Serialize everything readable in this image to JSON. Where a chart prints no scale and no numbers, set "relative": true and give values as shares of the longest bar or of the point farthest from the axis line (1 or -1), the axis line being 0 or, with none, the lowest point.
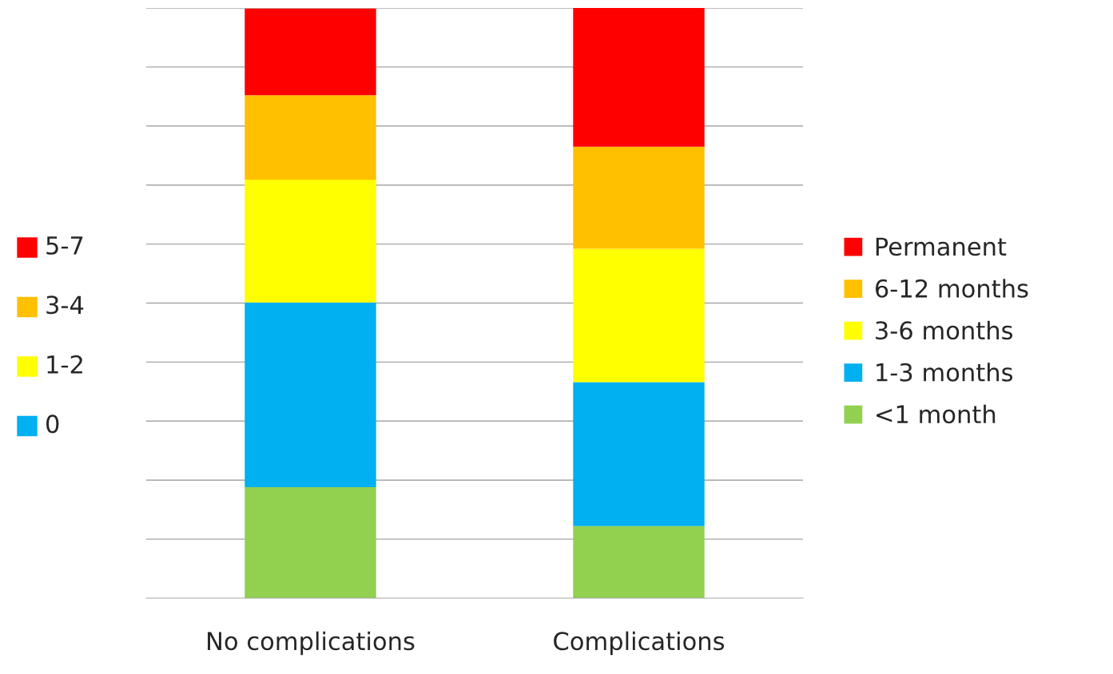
{
  "chart_data": {
    "type": "bar",
    "stacked": true,
    "relative": true,
    "grid": "y",
    "legend": "right",
    "categories": [
      "No complications",
      "Complications"
    ],
    "series": [
      {
        "name": "<1 month",
        "color": "#92d050",
        "values": [
          0.188,
          0.122
        ]
      },
      {
        "name": "1-3 months",
        "color": "#00b0f0",
        "values": [
          0.313,
          0.244
        ]
      },
      {
        "name": "3-6 months",
        "color": "#ffff00",
        "values": [
          0.208,
          0.226
        ]
      },
      {
        "name": "6-12 months",
        "color": "#ffc000",
        "values": [
          0.143,
          0.173
        ]
      },
      {
        "name": "Permanent",
        "color": "#ff0000",
        "values": [
          0.147,
          0.235
        ]
      }
    ],
    "annotations": [
      "5-7",
      "3-4",
      "1-2",
      "0"
    ]
  }
}
